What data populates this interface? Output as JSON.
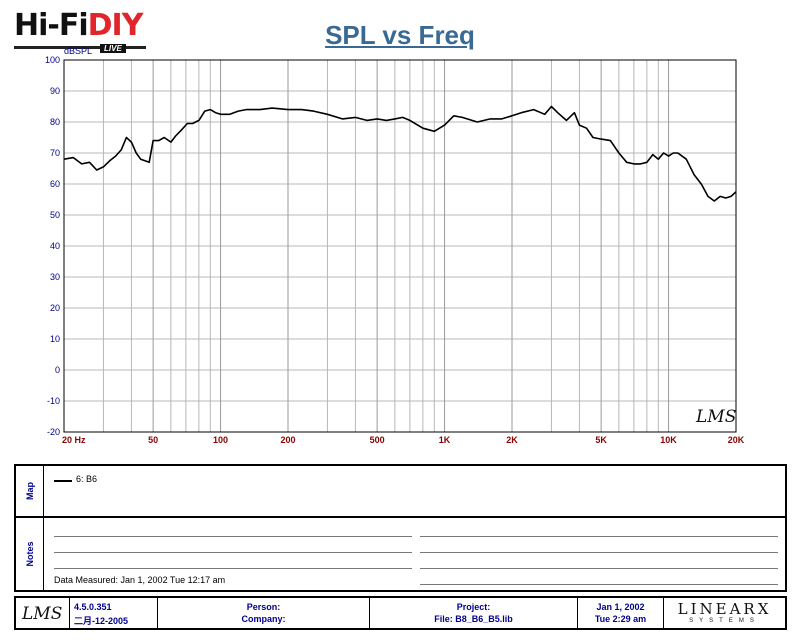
{
  "header": {
    "logo_hi": "Hi-Fi",
    "logo_diy": "DIY",
    "logo_live": "LIVE",
    "title": "SPL vs Freq",
    "y_unit": "dBSPL",
    "watermark": "LMS"
  },
  "chart_data": {
    "type": "line",
    "title": "SPL vs Freq",
    "xlabel": "",
    "ylabel": "dBSPL",
    "x_scale": "log",
    "xlim": [
      20,
      20000
    ],
    "ylim": [
      -20,
      100
    ],
    "grid": true,
    "x_ticks": [
      {
        "value": 20,
        "label": "20  Hz"
      },
      {
        "value": 50,
        "label": "50"
      },
      {
        "value": 100,
        "label": "100"
      },
      {
        "value": 200,
        "label": "200"
      },
      {
        "value": 500,
        "label": "500"
      },
      {
        "value": 1000,
        "label": "1K"
      },
      {
        "value": 2000,
        "label": "2K"
      },
      {
        "value": 5000,
        "label": "5K"
      },
      {
        "value": 10000,
        "label": "10K"
      },
      {
        "value": 20000,
        "label": "20K"
      }
    ],
    "y_ticks": [
      {
        "value": 100,
        "label": "100"
      },
      {
        "value": 90,
        "label": "90"
      },
      {
        "value": 80,
        "label": "80"
      },
      {
        "value": 70,
        "label": "70"
      },
      {
        "value": 60,
        "label": "60"
      },
      {
        "value": 50,
        "label": "50"
      },
      {
        "value": 40,
        "label": "40"
      },
      {
        "value": 30,
        "label": "30"
      },
      {
        "value": 20,
        "label": "20"
      },
      {
        "value": 10,
        "label": "10"
      },
      {
        "value": 0,
        "label": "0"
      },
      {
        "value": -10,
        "label": "-10"
      },
      {
        "value": -20,
        "label": "-20"
      }
    ],
    "series": [
      {
        "name": "6: B6",
        "x": [
          20,
          22,
          24,
          26,
          28,
          30,
          32,
          34,
          36,
          38,
          40,
          42,
          44,
          46,
          48,
          50,
          53,
          56,
          60,
          63,
          67,
          71,
          75,
          80,
          85,
          90,
          95,
          100,
          110,
          120,
          130,
          150,
          170,
          200,
          230,
          260,
          300,
          350,
          400,
          450,
          500,
          550,
          600,
          650,
          700,
          800,
          900,
          1000,
          1100,
          1200,
          1400,
          1600,
          1800,
          2000,
          2200,
          2500,
          2800,
          3000,
          3200,
          3500,
          3800,
          4000,
          4300,
          4600,
          5000,
          5500,
          6000,
          6500,
          7000,
          7500,
          8000,
          8500,
          9000,
          9500,
          10000,
          10500,
          11000,
          12000,
          13000,
          14000,
          15000,
          16000,
          17000,
          18000,
          19000,
          20000
        ],
        "y": [
          68,
          68.5,
          66.5,
          67,
          64.5,
          65.5,
          67.5,
          69,
          71,
          75,
          73.5,
          70,
          68,
          67.5,
          67,
          74,
          74,
          75,
          73.5,
          75.5,
          77.5,
          79.5,
          79.5,
          80.5,
          83.5,
          84,
          83,
          82.5,
          82.5,
          83.5,
          84,
          84,
          84.5,
          84,
          84,
          83.5,
          82.5,
          81,
          81.5,
          80.5,
          81,
          80.5,
          81,
          81.5,
          80.5,
          78,
          77,
          79,
          82,
          81.5,
          80,
          81,
          81,
          82,
          83,
          84,
          82.5,
          85,
          83,
          80.5,
          83,
          79,
          78,
          75,
          74.5,
          74,
          70,
          67,
          66.5,
          66.5,
          67,
          69.5,
          68,
          70,
          69,
          70,
          70,
          68,
          63,
          60,
          56,
          54.5,
          56,
          55.5,
          56,
          57.5
        ]
      }
    ],
    "legend": [
      {
        "label": "6: B6"
      }
    ],
    "legend_position": "map panel below plot"
  },
  "panels": {
    "map_label": "Map",
    "notes_label": "Notes",
    "legend_label": "6: B6",
    "date_measured": "Data Measured: Jan  1, 2002  Tue 12:17 am"
  },
  "footer": {
    "lms_logo": "LMS",
    "version": "4.5.0.351",
    "build_date": "二月-12-2005",
    "person_label": "Person:",
    "company_label": "Company:",
    "project_label": "Project:",
    "file_label": "File: B8_B6_B5.lib",
    "date": "Jan  1, 2002",
    "time": "Tue  2:29 am",
    "linearx_name": "LINEARX",
    "linearx_sub": "SYSTEMS"
  },
  "colors": {
    "axis_label": "#00008b",
    "tick_label": "#8b0000",
    "grid": "#b8b8b8",
    "curve": "#000000",
    "title": "#3a6a94",
    "logo_accent": "#e0252b"
  }
}
